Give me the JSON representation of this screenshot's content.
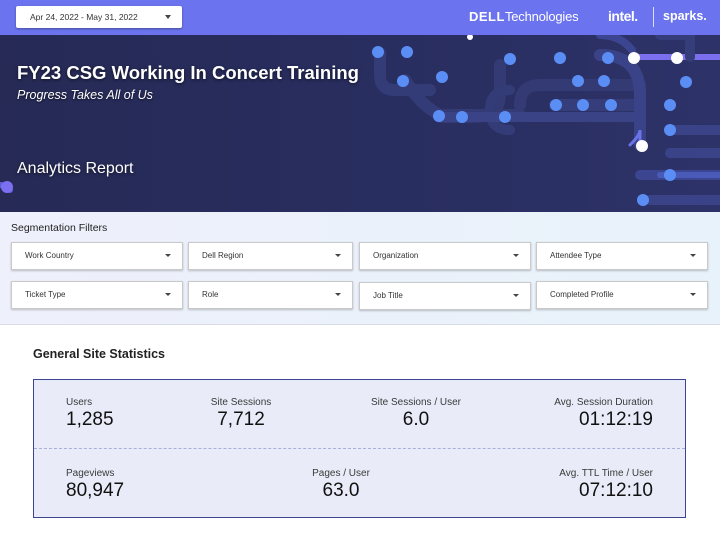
{
  "date_range": {
    "label": "Apr 24, 2022 - May 31, 2022"
  },
  "logos": {
    "dell_bold": "DELL",
    "dell_rest": "Technologies",
    "intel": "intel.",
    "sparks": "sparks."
  },
  "hero": {
    "title": "FY23 CSG Working In Concert Training",
    "subtitle": "Progress Takes All of Us",
    "report": "Analytics Report"
  },
  "filters": {
    "title": "Segmentation Filters",
    "items": [
      {
        "label": "Work Country"
      },
      {
        "label": "Dell Region"
      },
      {
        "label": "Organization"
      },
      {
        "label": "Attendee Type"
      },
      {
        "label": "Ticket Type"
      },
      {
        "label": "Role"
      },
      {
        "label": "Job Title"
      },
      {
        "label": "Completed Profile"
      }
    ]
  },
  "stats": {
    "title": "General Site Statistics",
    "users": {
      "label": "Users",
      "value": "1,285"
    },
    "site_sessions": {
      "label": "Site Sessions",
      "value": "7,712"
    },
    "sessions_per_user": {
      "label": "Site Sessions / User",
      "value": "6.0"
    },
    "avg_session_duration": {
      "label": "Avg. Session Duration",
      "value": "01:12:19"
    },
    "pageviews": {
      "label": "Pageviews",
      "value": "80,947"
    },
    "pages_per_user": {
      "label": "Pages / User",
      "value": "63.0"
    },
    "avg_ttl_time": {
      "label": "Avg. TTL Time / User",
      "value": "07:12:10"
    }
  },
  "colors": {
    "topbar": "#6b74ee",
    "hero_bg": "#282d5e",
    "dot_blue": "#5b8ef5",
    "dot_purple": "#7b6ff0",
    "card_border": "#3d4592",
    "card_bg": "#e9ecf8"
  }
}
